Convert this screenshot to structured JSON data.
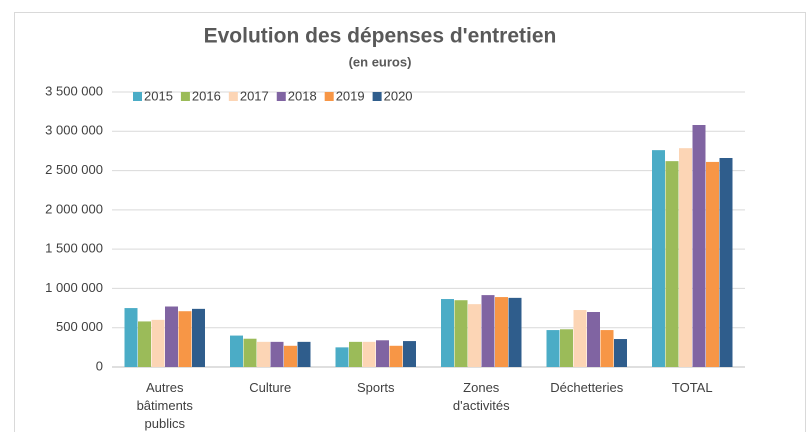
{
  "chart_data": {
    "type": "bar",
    "title": "Evolution des dépenses d'entretien",
    "subtitle": "(en euros)",
    "categories": [
      "Autres bâtiments publics",
      "Culture",
      "Sports",
      "Zones d'activités",
      "Déchetteries",
      "TOTAL"
    ],
    "series": [
      {
        "name": "2015",
        "color": "#4bacc6",
        "values": [
          750000,
          400000,
          250000,
          865000,
          470000,
          2760000
        ]
      },
      {
        "name": "2016",
        "color": "#9bbb59",
        "values": [
          580000,
          360000,
          320000,
          850000,
          480000,
          2620000
        ]
      },
      {
        "name": "2017",
        "color": "#fcd5b5",
        "values": [
          600000,
          320000,
          320000,
          800000,
          725000,
          2785000
        ]
      },
      {
        "name": "2018",
        "color": "#8064a2",
        "values": [
          770000,
          320000,
          340000,
          915000,
          700000,
          3080000
        ]
      },
      {
        "name": "2019",
        "color": "#f79646",
        "values": [
          710000,
          270000,
          270000,
          890000,
          470000,
          2610000
        ]
      },
      {
        "name": "2020",
        "color": "#2f5d8c",
        "values": [
          740000,
          320000,
          330000,
          880000,
          356000,
          2660000
        ]
      }
    ],
    "ylim": [
      0,
      3500000
    ],
    "yticks": [
      0,
      {
        "value": 500000,
        "label": "500 000"
      },
      {
        "value": 1000000,
        "label": "1 000 000"
      },
      {
        "value": 1500000,
        "label": "1 500 000"
      },
      {
        "value": 2000000,
        "label": "2 000 000"
      },
      {
        "value": 2500000,
        "label": "2 500 000"
      },
      {
        "value": 3000000,
        "label": "3 000 000"
      },
      {
        "value": 3500000,
        "label": "3 500 000"
      }
    ],
    "grid": true,
    "legend": "top-left"
  }
}
